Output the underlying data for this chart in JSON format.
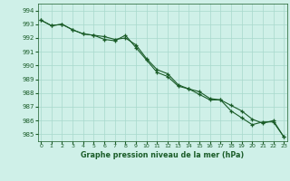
{
  "title": "Graphe pression niveau de la mer (hPa)",
  "background_color": "#cff0e8",
  "plot_bg_color": "#cff0e8",
  "grid_color": "#a8d8cc",
  "line_color": "#1a5c28",
  "hours": [
    0,
    1,
    2,
    3,
    4,
    5,
    6,
    7,
    8,
    9,
    10,
    11,
    12,
    13,
    14,
    15,
    16,
    17,
    18,
    19,
    20,
    21,
    22,
    23
  ],
  "series1": [
    993.3,
    992.9,
    993.0,
    992.6,
    992.3,
    992.2,
    992.1,
    991.9,
    992.0,
    991.5,
    990.5,
    989.7,
    989.4,
    988.6,
    988.3,
    988.1,
    987.6,
    987.5,
    987.1,
    986.7,
    986.1,
    985.8,
    986.0,
    984.8
  ],
  "series2": [
    993.3,
    992.9,
    993.0,
    992.6,
    992.3,
    992.2,
    991.9,
    991.8,
    992.2,
    991.3,
    990.4,
    989.5,
    989.2,
    988.5,
    988.3,
    987.9,
    987.5,
    987.5,
    986.7,
    986.2,
    985.7,
    985.9,
    985.9,
    984.8
  ],
  "ylim": [
    984.5,
    994.5
  ],
  "yticks": [
    985,
    986,
    987,
    988,
    989,
    990,
    991,
    992,
    993,
    994
  ],
  "xlim": [
    -0.3,
    23.3
  ],
  "xticks": [
    0,
    1,
    2,
    3,
    4,
    5,
    6,
    7,
    8,
    9,
    10,
    11,
    12,
    13,
    14,
    15,
    16,
    17,
    18,
    19,
    20,
    21,
    22,
    23
  ]
}
